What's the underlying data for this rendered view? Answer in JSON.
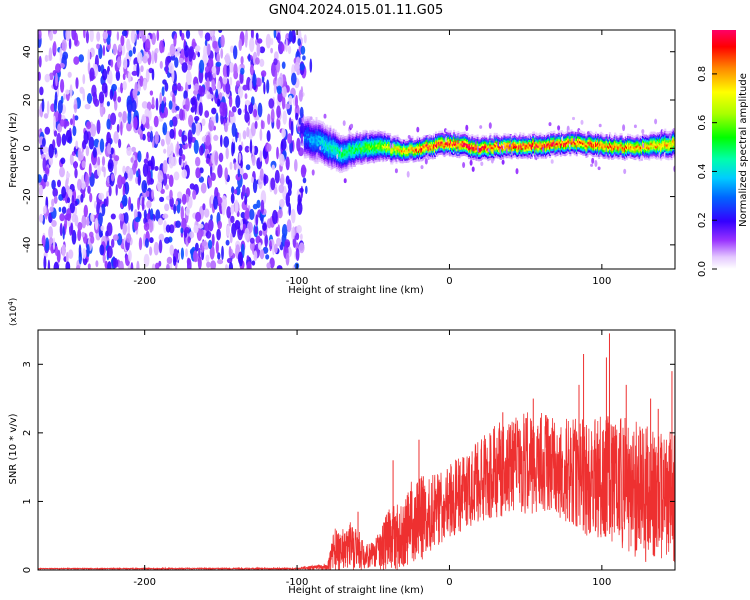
{
  "title": "GN04.2024.015.01.11.G05",
  "chart_data": [
    {
      "type": "heatmap",
      "xlabel": "Height of straight line (km)",
      "ylabel": "Frequency (Hz)",
      "xlim": [
        -270,
        148
      ],
      "ylim": [
        -50,
        49
      ],
      "xticks": [
        -200,
        -100,
        0,
        100
      ],
      "yticks": [
        -40,
        -20,
        0,
        20,
        40
      ],
      "colorbar": {
        "label": "Normalized spectral amplitude",
        "range": [
          0,
          0.98
        ],
        "ticks": [
          "0.0",
          "0.2",
          "0.4",
          "0.6",
          "0.8"
        ]
      },
      "noise_region": {
        "x_from": -270,
        "x_to": -95,
        "y_from": -50,
        "y_to": 49,
        "amplitude": 0.1
      },
      "signal_band": {
        "x_from": -95,
        "x_to": 148,
        "x": [
          -95,
          -80,
          -70,
          -60,
          -50,
          -40,
          -30,
          -20,
          -10,
          0,
          10,
          20,
          40,
          60,
          80,
          100,
          120,
          148
        ],
        "center_freq_hz": [
          5,
          1,
          -2,
          0,
          1,
          0,
          -1,
          0,
          1,
          2,
          1,
          0,
          1,
          1,
          2,
          1,
          0,
          2
        ],
        "halfwidth_hz": [
          9,
          8,
          7,
          6,
          6,
          5,
          4,
          4,
          4,
          4,
          4,
          4,
          4,
          4,
          4,
          4,
          4,
          5
        ],
        "peak_amplitude": [
          0.3,
          0.45,
          0.5,
          0.55,
          0.6,
          0.7,
          0.8,
          0.9,
          0.95,
          0.95,
          0.98,
          0.95,
          0.92,
          0.95,
          0.9,
          0.88,
          0.85,
          0.8
        ]
      }
    },
    {
      "type": "line",
      "xlabel": "Height of straight line (km)",
      "ylabel": "SNR (10 * v/v)",
      "y_multiplier": "(x10",
      "y_multiplier_exp": "4",
      "y_multiplier_close": ")",
      "xlim": [
        -270,
        148
      ],
      "ylim": [
        0,
        3.5
      ],
      "xticks": [
        -200,
        -100,
        0,
        100
      ],
      "yticks": [
        0,
        1,
        2,
        3
      ],
      "series_color": "#ee3030",
      "envelope": {
        "x": [
          -270,
          -100,
          -80,
          -75,
          -65,
          -60,
          -55,
          -50,
          -45,
          -40,
          -35,
          -30,
          -25,
          -20,
          -10,
          0,
          10,
          20,
          30,
          40,
          50,
          60,
          70,
          80,
          90,
          100,
          110,
          120,
          130,
          140,
          148
        ],
        "mean": [
          0.02,
          0.02,
          0.05,
          0.3,
          0.35,
          0.3,
          0.2,
          0.2,
          0.3,
          0.45,
          0.45,
          0.55,
          0.7,
          0.75,
          0.85,
          1.0,
          1.15,
          1.3,
          1.45,
          1.5,
          1.55,
          1.6,
          1.5,
          1.45,
          1.35,
          1.35,
          1.3,
          1.2,
          1.1,
          1.0,
          1.1
        ],
        "spread": [
          0.005,
          0.01,
          0.05,
          0.35,
          0.35,
          0.3,
          0.2,
          0.2,
          0.3,
          0.5,
          0.5,
          0.5,
          0.6,
          0.65,
          0.55,
          0.55,
          0.55,
          0.6,
          0.7,
          0.7,
          0.75,
          0.75,
          0.75,
          0.8,
          0.85,
          0.9,
          0.95,
          1.0,
          1.0,
          1.0,
          1.0
        ]
      },
      "spikes": [
        {
          "x": -60,
          "y": 0.85
        },
        {
          "x": -37,
          "y": 1.6
        },
        {
          "x": -20,
          "y": 1.9
        },
        {
          "x": 35,
          "y": 2.3
        },
        {
          "x": 55,
          "y": 2.5
        },
        {
          "x": 85,
          "y": 2.7
        },
        {
          "x": 88,
          "y": 3.15
        },
        {
          "x": 103,
          "y": 3.1
        },
        {
          "x": 105,
          "y": 3.45
        },
        {
          "x": 116,
          "y": 2.7
        },
        {
          "x": 132,
          "y": 2.5
        },
        {
          "x": 137,
          "y": 2.35
        },
        {
          "x": 146,
          "y": 2.9
        }
      ]
    }
  ]
}
